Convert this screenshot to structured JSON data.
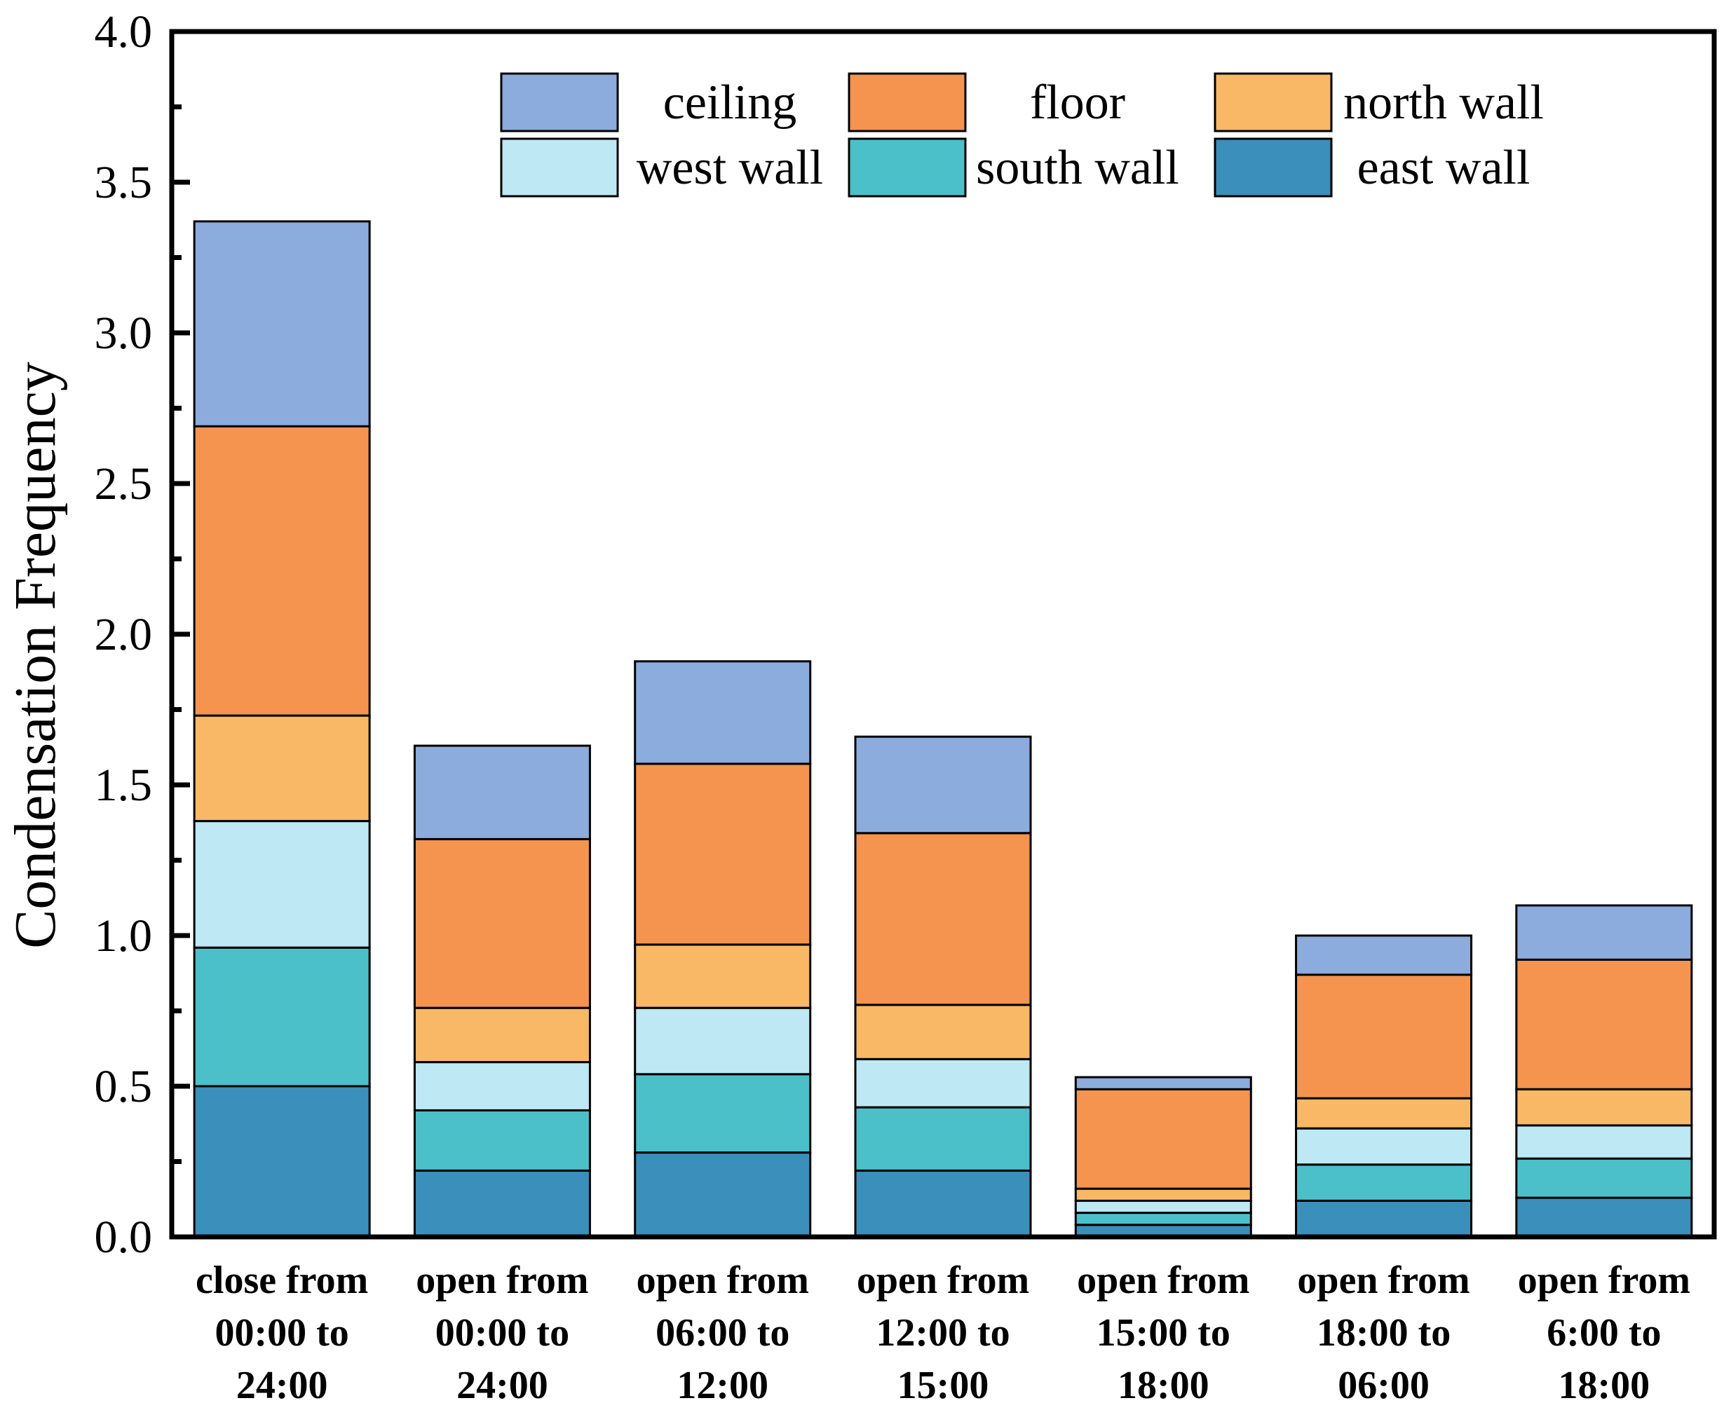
{
  "chart_data": {
    "type": "bar",
    "stacked": true,
    "title": "",
    "xlabel": "",
    "ylabel": "Condensation Frequency",
    "ylim": [
      0,
      4.0
    ],
    "yticks": [
      "0.0",
      "0.5",
      "1.0",
      "1.5",
      "2.0",
      "2.5",
      "3.0",
      "3.5",
      "4.0"
    ],
    "legend_position": "top-right",
    "categories": [
      [
        "close from",
        "00:00 to",
        "24:00"
      ],
      [
        "open from",
        "00:00 to",
        "24:00"
      ],
      [
        "open from",
        "06:00 to",
        "12:00"
      ],
      [
        "open from",
        "12:00 to",
        "15:00"
      ],
      [
        "open from",
        "15:00 to",
        "18:00"
      ],
      [
        "open from",
        "18:00 to",
        "06:00"
      ],
      [
        "open from",
        "6:00 to",
        "18:00"
      ]
    ],
    "series": [
      {
        "name": "east wall",
        "color": "#3A8FBB",
        "values": [
          0.5,
          0.22,
          0.28,
          0.22,
          0.04,
          0.12,
          0.13
        ]
      },
      {
        "name": "south wall",
        "color": "#4CC0C9",
        "values": [
          0.46,
          0.2,
          0.26,
          0.21,
          0.04,
          0.12,
          0.13
        ]
      },
      {
        "name": "west wall",
        "color": "#BDE8F4",
        "values": [
          0.42,
          0.16,
          0.22,
          0.16,
          0.04,
          0.12,
          0.11
        ]
      },
      {
        "name": "north wall",
        "color": "#F8B865",
        "values": [
          0.35,
          0.18,
          0.21,
          0.18,
          0.04,
          0.1,
          0.12
        ]
      },
      {
        "name": "floor",
        "color": "#F4944F",
        "values": [
          0.96,
          0.56,
          0.6,
          0.57,
          0.33,
          0.41,
          0.43
        ]
      },
      {
        "name": "ceiling",
        "color": "#8BACDC",
        "values": [
          0.68,
          0.31,
          0.34,
          0.32,
          0.04,
          0.13,
          0.18
        ]
      }
    ],
    "legend_order": [
      "ceiling",
      "floor",
      "north wall",
      "west wall",
      "south wall",
      "east wall"
    ]
  }
}
